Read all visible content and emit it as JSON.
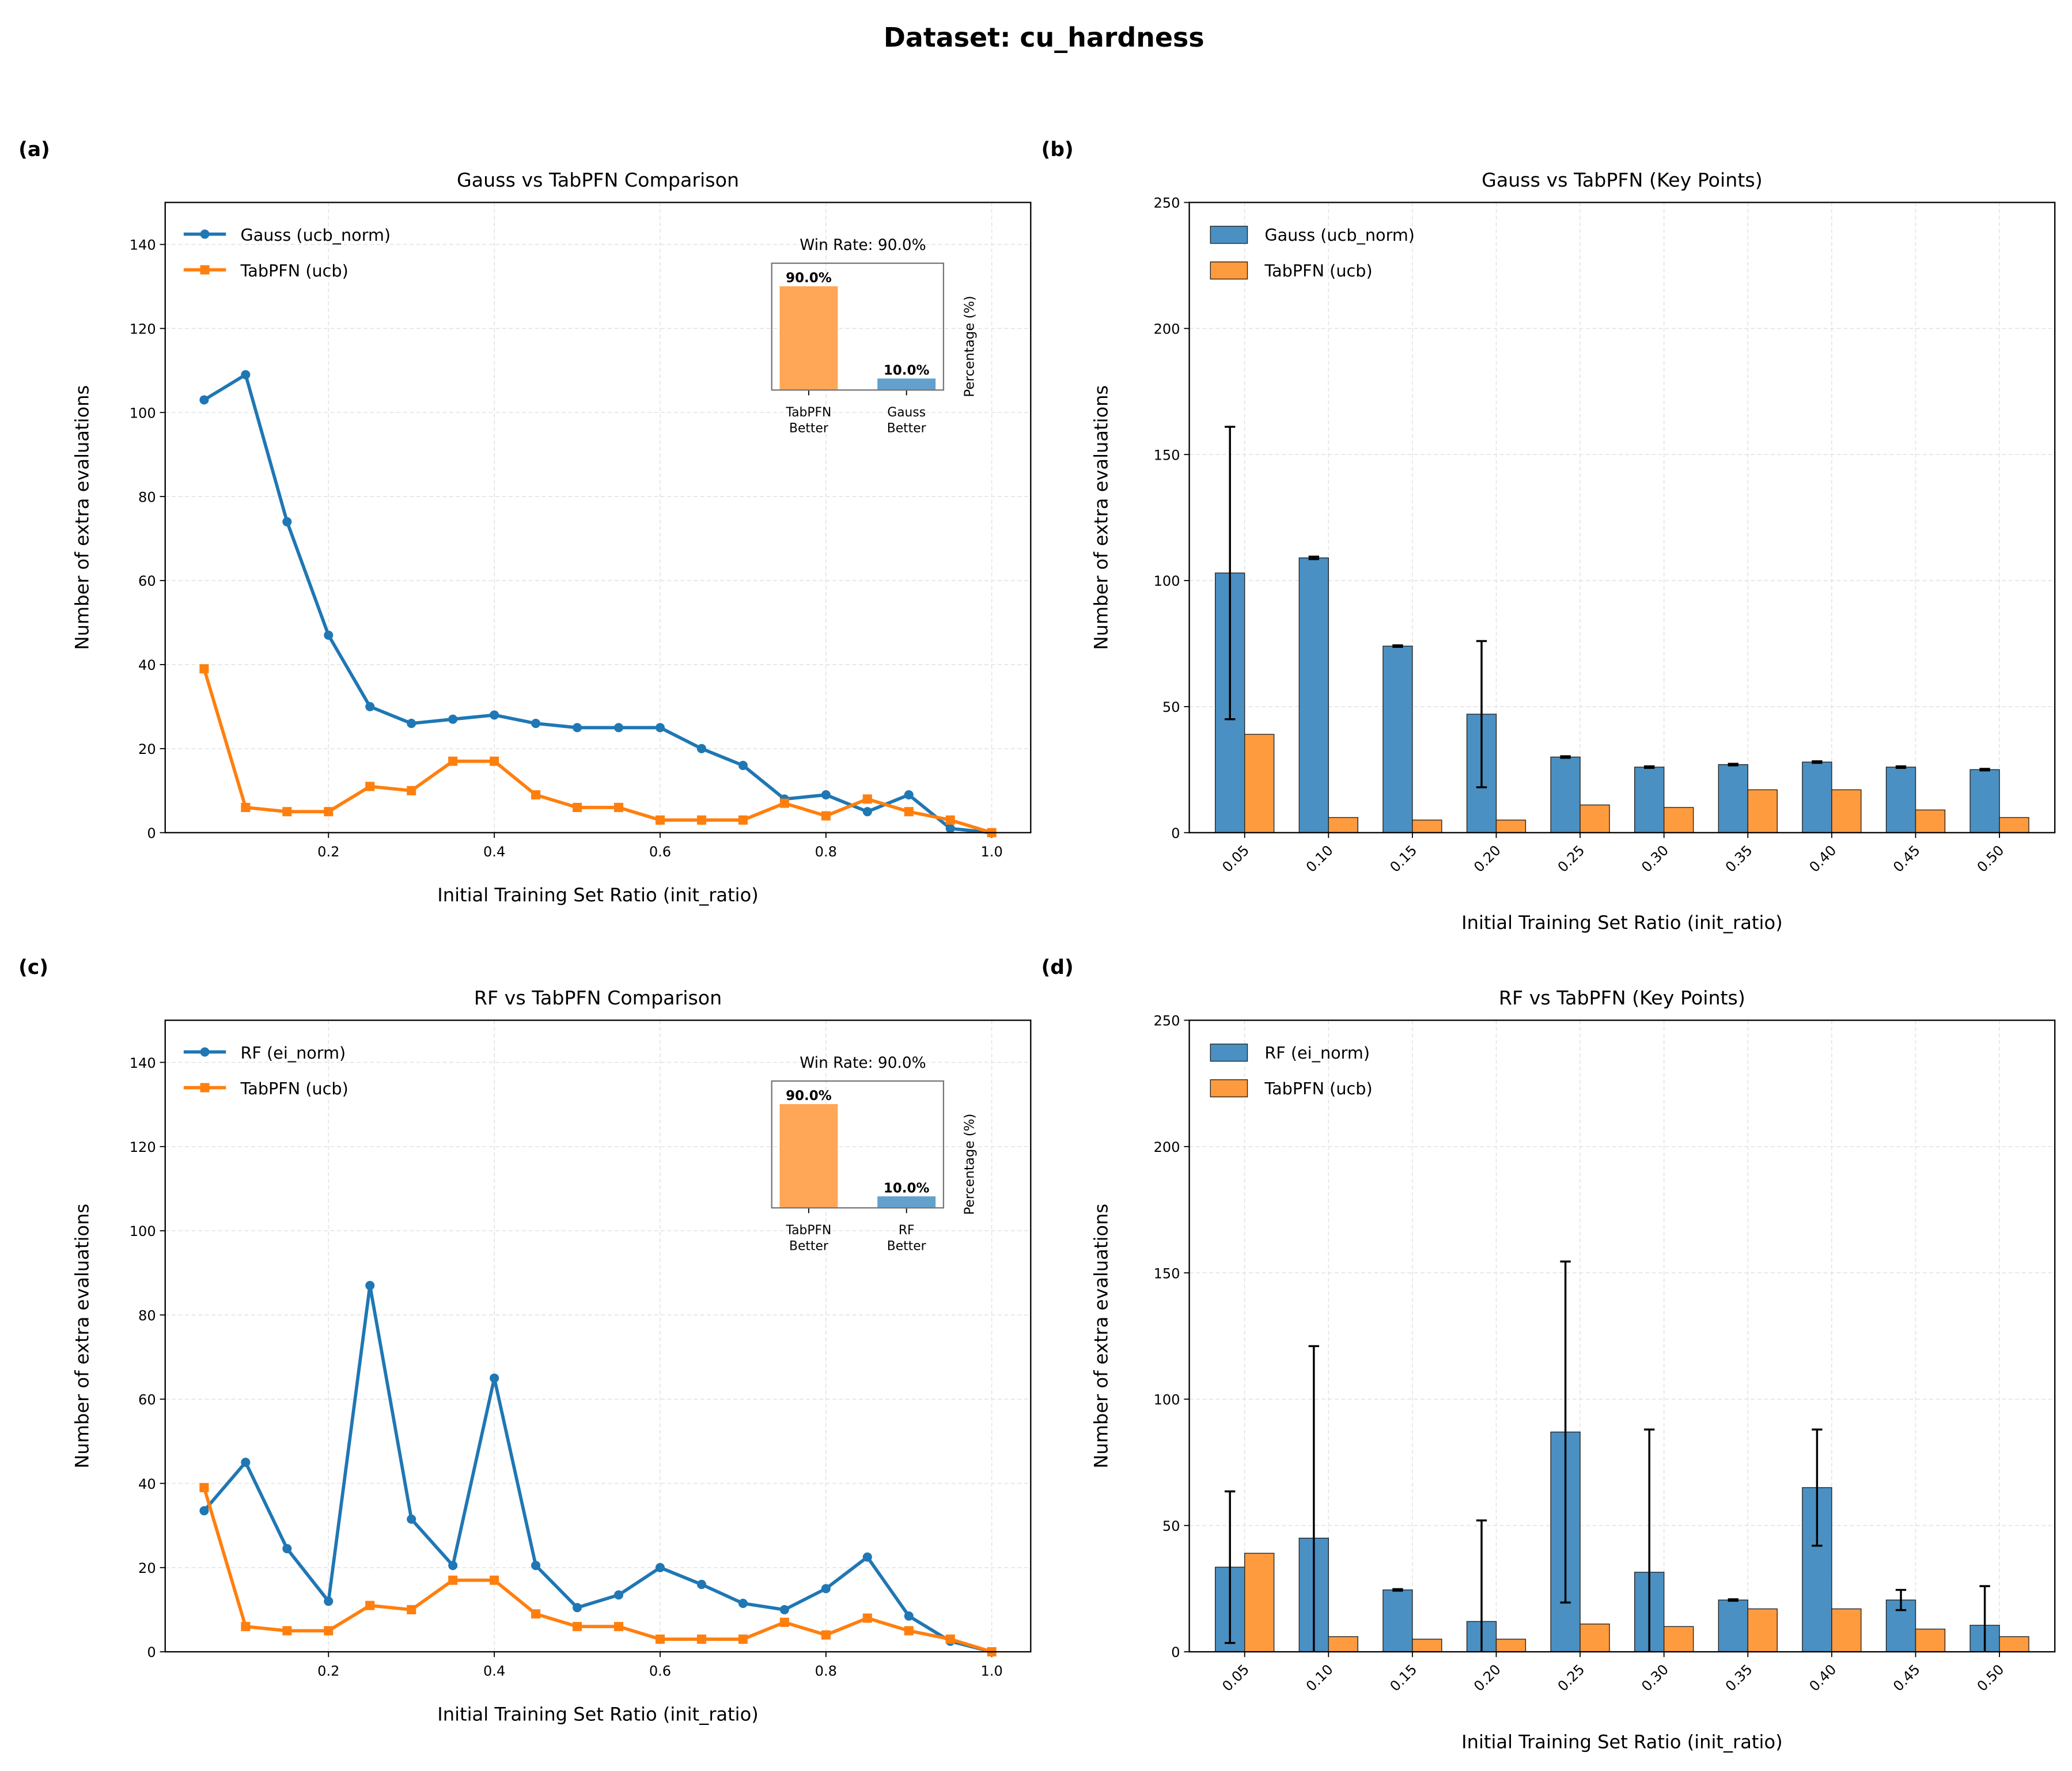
{
  "suptitle": "Dataset: cu_hardness",
  "colors": {
    "gauss": "#1f77b4",
    "tabpfn": "#ff7f0e",
    "bar_blue": "#4a90c2",
    "bar_orange": "#ff9b3f",
    "inset_orange": "#ffa657",
    "inset_blue": "#64a0cc"
  },
  "chart_data": [
    {
      "panel": "(a)",
      "type": "line",
      "title": "Gauss vs TabPFN Comparison",
      "xlabel": "Initial Training Set Ratio (init_ratio)",
      "ylabel": "Number of extra evaluations",
      "xlim": [
        0.003,
        1.047
      ],
      "ylim": [
        0,
        150
      ],
      "grid": true,
      "legend": "top-left",
      "xticks": [
        0.2,
        0.4,
        0.6,
        0.8,
        1.0
      ],
      "xtick_labels": [
        "0.2",
        "0.4",
        "0.6",
        "0.8",
        "1.0"
      ],
      "yticks": [
        0,
        20,
        40,
        60,
        80,
        100,
        120,
        140
      ],
      "ytick_labels": [
        "0",
        "20",
        "40",
        "60",
        "80",
        "100",
        "120",
        "140"
      ],
      "x": [
        0.05,
        0.1,
        0.15,
        0.2,
        0.25,
        0.3,
        0.35,
        0.4,
        0.45,
        0.5,
        0.55,
        0.6,
        0.65,
        0.7,
        0.75,
        0.8,
        0.85,
        0.9,
        0.95,
        1.0
      ],
      "series": [
        {
          "name": "Gauss (ucb_norm)",
          "marker": "circle",
          "values": [
            103,
            109,
            74,
            47,
            30,
            26,
            27,
            28,
            26,
            25,
            25,
            25,
            20,
            16,
            8,
            9,
            5,
            9,
            1,
            0
          ]
        },
        {
          "name": "TabPFN (ucb)",
          "marker": "square",
          "values": [
            39,
            6,
            5,
            5,
            11,
            10,
            17,
            17,
            9,
            6,
            6,
            3,
            3,
            3,
            7,
            4,
            8,
            5,
            3,
            0
          ]
        }
      ],
      "inset": {
        "title": "Win Rate: 90.0%",
        "ylabel": "Percentage (%)",
        "ylim": [
          0,
          110
        ],
        "categories": [
          "TabPFN\nBetter",
          "Gauss\nBetter"
        ],
        "values": [
          90.0,
          10.0
        ],
        "labels": [
          "90.0%",
          "10.0%"
        ]
      }
    },
    {
      "panel": "(b)",
      "type": "bar",
      "title": "Gauss vs TabPFN (Key Points)",
      "xlabel": "Initial Training Set Ratio (init_ratio)",
      "ylabel": "Number of extra evaluations",
      "ylim": [
        0,
        250
      ],
      "grid": true,
      "legend": "top-left",
      "yticks": [
        0,
        50,
        100,
        150,
        200,
        250
      ],
      "ytick_labels": [
        "0",
        "50",
        "100",
        "150",
        "200",
        "250"
      ],
      "categories": [
        "0.05",
        "0.10",
        "0.15",
        "0.20",
        "0.25",
        "0.30",
        "0.35",
        "0.40",
        "0.45",
        "0.50"
      ],
      "series": [
        {
          "name": "Gauss (ucb_norm)",
          "values": [
            103,
            109,
            74,
            47,
            30,
            26,
            27,
            28,
            26,
            25
          ],
          "error": [
            58,
            0.5,
            0.3,
            29,
            0.3,
            0.3,
            0.3,
            0.3,
            0.3,
            0.3
          ]
        },
        {
          "name": "TabPFN (ucb)",
          "values": [
            39,
            6,
            5,
            5,
            11,
            10,
            17,
            17,
            9,
            6
          ]
        }
      ]
    },
    {
      "panel": "(c)",
      "type": "line",
      "title": "RF vs TabPFN Comparison",
      "xlabel": "Initial Training Set Ratio (init_ratio)",
      "ylabel": "Number of extra evaluations",
      "xlim": [
        0.003,
        1.047
      ],
      "ylim": [
        0,
        150
      ],
      "grid": true,
      "legend": "top-left",
      "xticks": [
        0.2,
        0.4,
        0.6,
        0.8,
        1.0
      ],
      "xtick_labels": [
        "0.2",
        "0.4",
        "0.6",
        "0.8",
        "1.0"
      ],
      "yticks": [
        0,
        20,
        40,
        60,
        80,
        100,
        120,
        140
      ],
      "ytick_labels": [
        "0",
        "20",
        "40",
        "60",
        "80",
        "100",
        "120",
        "140"
      ],
      "x": [
        0.05,
        0.1,
        0.15,
        0.2,
        0.25,
        0.3,
        0.35,
        0.4,
        0.45,
        0.5,
        0.55,
        0.6,
        0.65,
        0.7,
        0.75,
        0.8,
        0.85,
        0.9,
        0.95,
        1.0
      ],
      "series": [
        {
          "name": "RF (ei_norm)",
          "marker": "circle",
          "values": [
            33.5,
            45,
            24.5,
            12,
            87,
            31.5,
            20.5,
            65,
            20.5,
            10.5,
            13.5,
            20,
            16,
            11.5,
            10,
            15,
            22.5,
            8.5,
            2.5,
            0
          ]
        },
        {
          "name": "TabPFN (ucb)",
          "marker": "square",
          "values": [
            39,
            6,
            5,
            5,
            11,
            10,
            17,
            17,
            9,
            6,
            6,
            3,
            3,
            3,
            7,
            4,
            8,
            5,
            3,
            0
          ]
        }
      ],
      "inset": {
        "title": "Win Rate: 90.0%",
        "ylabel": "Percentage (%)",
        "ylim": [
          0,
          110
        ],
        "categories": [
          "TabPFN\nBetter",
          "RF\nBetter"
        ],
        "values": [
          90.0,
          10.0
        ],
        "labels": [
          "90.0%",
          "10.0%"
        ]
      }
    },
    {
      "panel": "(d)",
      "type": "bar",
      "title": "RF vs TabPFN (Key Points)",
      "xlabel": "Initial Training Set Ratio (init_ratio)",
      "ylabel": "Number of extra evaluations",
      "ylim": [
        0,
        250
      ],
      "grid": true,
      "legend": "top-left",
      "yticks": [
        0,
        50,
        100,
        150,
        200,
        250
      ],
      "ytick_labels": [
        "0",
        "50",
        "100",
        "150",
        "200",
        "250"
      ],
      "categories": [
        "0.05",
        "0.10",
        "0.15",
        "0.20",
        "0.25",
        "0.30",
        "0.35",
        "0.40",
        "0.45",
        "0.50"
      ],
      "series": [
        {
          "name": "RF (ei_norm)",
          "values": [
            33.5,
            45,
            24.5,
            12,
            87,
            31.5,
            20.5,
            65,
            20.5,
            10.5
          ],
          "error": [
            30,
            76,
            0.3,
            40,
            67.5,
            56.5,
            0.3,
            23,
            4,
            15.5
          ]
        },
        {
          "name": "TabPFN (ucb)",
          "values": [
            39,
            6,
            5,
            5,
            11,
            10,
            17,
            17,
            9,
            6
          ]
        }
      ]
    }
  ]
}
